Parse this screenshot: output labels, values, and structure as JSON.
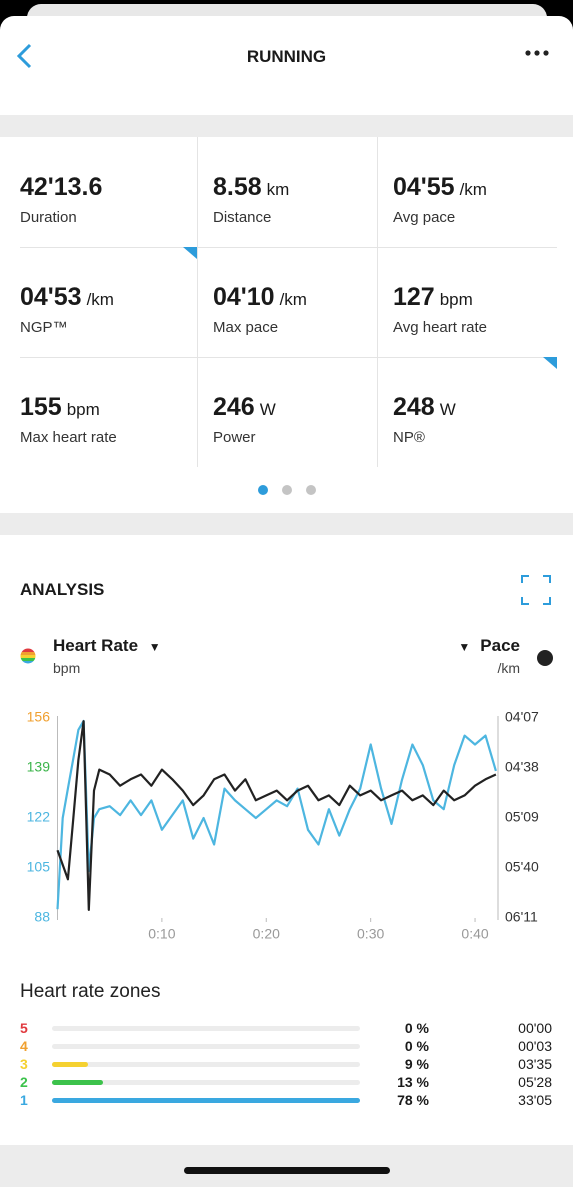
{
  "header": {
    "title": "RUNNING"
  },
  "stats": [
    {
      "value": "42'13.6",
      "unit": "",
      "label": "Duration"
    },
    {
      "value": "8.58",
      "unit": "km",
      "label": "Distance"
    },
    {
      "value": "04'55",
      "unit": "/km",
      "label": "Avg pace"
    },
    {
      "value": "04'53",
      "unit": "/km",
      "label": "NGP™"
    },
    {
      "value": "04'10",
      "unit": "/km",
      "label": "Max pace"
    },
    {
      "value": "127",
      "unit": "bpm",
      "label": "Avg heart rate"
    },
    {
      "value": "155",
      "unit": "bpm",
      "label": "Max heart rate"
    },
    {
      "value": "246",
      "unit": "W",
      "label": "Power"
    },
    {
      "value": "248",
      "unit": "W",
      "label": "NP®"
    }
  ],
  "analysis": {
    "title": "ANALYSIS",
    "left_metric": "Heart Rate",
    "left_unit": "bpm",
    "right_metric": "Pace",
    "right_unit": "/km"
  },
  "chart_data": {
    "type": "line",
    "x": [
      0,
      0.5,
      1,
      1.5,
      2,
      2.5,
      3,
      3.5,
      4,
      5,
      6,
      7,
      8,
      9,
      10,
      11,
      12,
      13,
      14,
      15,
      16,
      17,
      18,
      19,
      20,
      21,
      22,
      23,
      24,
      25,
      26,
      27,
      28,
      29,
      30,
      31,
      32,
      33,
      34,
      35,
      36,
      37,
      38,
      39,
      40,
      41,
      42
    ],
    "series": [
      {
        "name": "Heart Rate",
        "color": "#4db6e0",
        "values": [
          91,
          122,
          132,
          142,
          152,
          155,
          104,
          122,
          125,
          126,
          123,
          128,
          123,
          128,
          118,
          123,
          128,
          115,
          122,
          113,
          132,
          128,
          125,
          122,
          125,
          128,
          126,
          132,
          118,
          113,
          125,
          116,
          125,
          132,
          147,
          132,
          120,
          135,
          147,
          140,
          128,
          125,
          140,
          150,
          147,
          150,
          138
        ]
      },
      {
        "name": "Pace",
        "color": "#222222",
        "axis": "y2",
        "values": [
          329,
          338,
          347,
          310,
          273,
          249,
          366,
          292,
          279,
          282,
          289,
          285,
          282,
          289,
          279,
          285,
          292,
          301,
          295,
          285,
          282,
          292,
          285,
          298,
          295,
          292,
          298,
          292,
          289,
          298,
          295,
          301,
          289,
          295,
          292,
          298,
          295,
          292,
          298,
          295,
          301,
          292,
          298,
          295,
          289,
          285,
          282
        ]
      }
    ],
    "xlim": [
      0,
      42.2
    ],
    "xticks": [
      {
        "value": 10,
        "label": "0:10"
      },
      {
        "value": 20,
        "label": "0:20"
      },
      {
        "value": 30,
        "label": "0:30"
      },
      {
        "value": 40,
        "label": "0:40"
      }
    ],
    "ylim": [
      88,
      156
    ],
    "yticks": [
      88,
      105,
      122,
      139,
      156
    ],
    "ytick_colors": [
      "#4db6e0",
      "#4db6e0",
      "#4db6e0",
      "#3cb44b",
      "#f0a030"
    ],
    "y2lim": [
      371,
      247
    ],
    "y2ticks": [
      {
        "value": 371,
        "label": "06'11"
      },
      {
        "value": 340,
        "label": "05'40"
      },
      {
        "value": 309,
        "label": "05'09"
      },
      {
        "value": 278,
        "label": "04'38"
      },
      {
        "value": 247,
        "label": "04'07"
      }
    ]
  },
  "zones": {
    "title": "Heart rate zones",
    "rows": [
      {
        "zone": "5",
        "color": "#e0393e",
        "percent": 0,
        "percent_label": "0 %",
        "time": "00'00"
      },
      {
        "zone": "4",
        "color": "#f0a030",
        "percent": 0,
        "percent_label": "0 %",
        "time": "00'03"
      },
      {
        "zone": "3",
        "color": "#f5d130",
        "percent": 9,
        "percent_label": "9 %",
        "time": "03'35"
      },
      {
        "zone": "2",
        "color": "#3cc24b",
        "percent": 13,
        "percent_label": "13 %",
        "time": "05'28"
      },
      {
        "zone": "1",
        "color": "#3aa8e0",
        "percent": 78,
        "percent_label": "78 %",
        "time": "33'05"
      }
    ]
  }
}
